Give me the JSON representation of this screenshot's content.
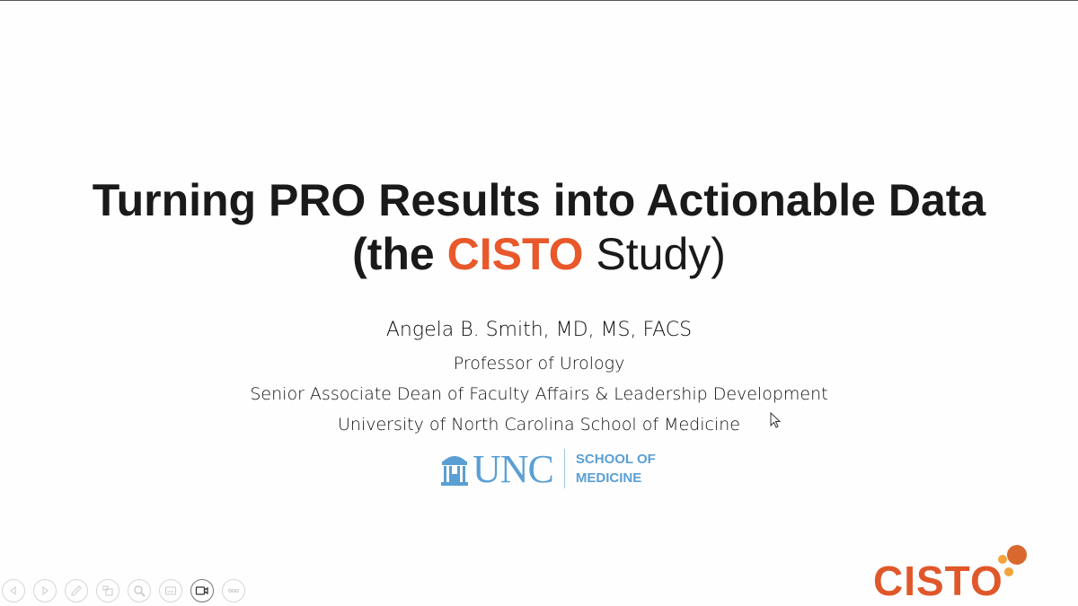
{
  "slide": {
    "title_line1": "Turning PRO Results into Actionable Data",
    "title_line2_pre": "(the ",
    "title_line2_accent": "CISTO",
    "title_line2_post": " Study)",
    "author": "Angela B. Smith, MD, MS, FACS",
    "affiliations": [
      "Professor of Urology",
      "Senior Associate Dean of Faculty Affairs & Leadership Development",
      "University of North Carolina School of Medicine"
    ],
    "unc_logo": {
      "mark": "UNC",
      "sub1": "SCHOOL OF",
      "sub2": "MEDICINE",
      "color": "#5a9fd4"
    },
    "cisto_logo": {
      "text": "CISTO",
      "color": "#e0582a"
    },
    "accent_color": "#e8582a"
  },
  "toolbar": {
    "buttons": [
      "previous-icon",
      "next-icon",
      "pen-icon",
      "slides-icon",
      "zoom-icon",
      "subtitles-icon",
      "camera-icon",
      "more-icon"
    ]
  }
}
